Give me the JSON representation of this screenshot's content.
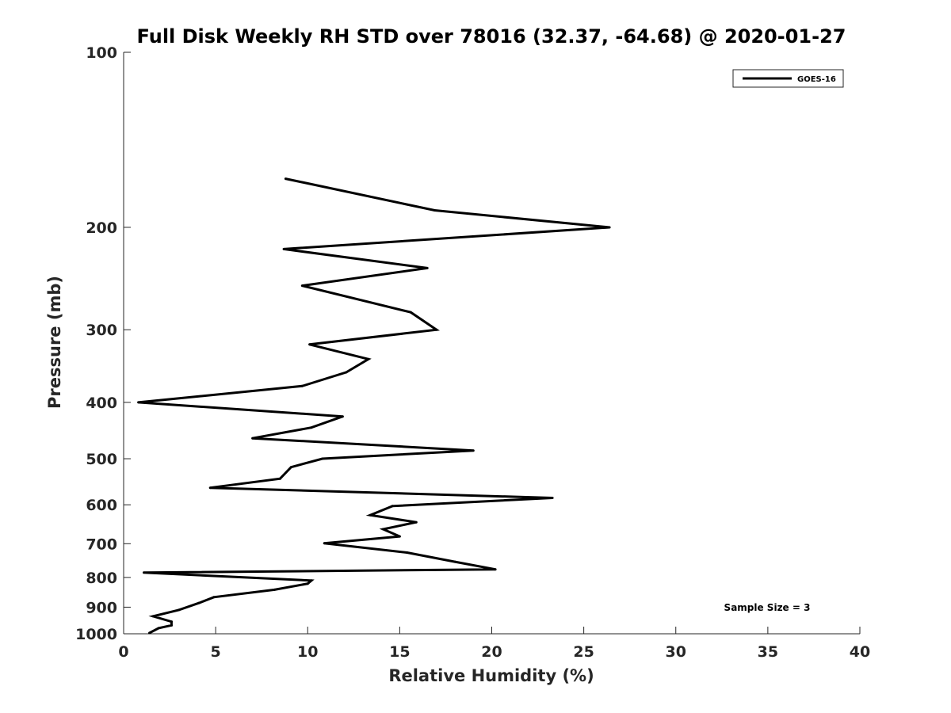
{
  "chart_data": {
    "type": "line",
    "title": "Full Disk Weekly RH STD over 78016 (32.37, -64.68) @ 2020-01-27",
    "xlabel": "Relative Humidity (%)",
    "ylabel": "Pressure (mb)",
    "xlim": [
      0,
      40
    ],
    "ylim": [
      1000,
      100
    ],
    "yscale": "log",
    "xticks": [
      "0",
      "5",
      "10",
      "15",
      "20",
      "25",
      "30",
      "35",
      "40"
    ],
    "yticks": [
      "100",
      "200",
      "300",
      "400",
      "500",
      "600",
      "700",
      "800",
      "900",
      "1000"
    ],
    "legend": {
      "position": "top-right",
      "entries": [
        "GOES-16"
      ]
    },
    "annotation": "Sample Size = 3",
    "grid": false,
    "series": [
      {
        "name": "GOES-16",
        "color": "#000000",
        "x": [
          8.8,
          16.9,
          26.4,
          8.7,
          16.5,
          9.7,
          15.6,
          17.0,
          10.1,
          13.3,
          12.1,
          9.7,
          0.8,
          11.9,
          10.2,
          7.0,
          19.0,
          10.8,
          9.1,
          8.5,
          4.7,
          23.3,
          14.6,
          13.4,
          15.9,
          14.1,
          15.0,
          10.9,
          15.4,
          18.0,
          20.2,
          1.1,
          10.2,
          10.0,
          8.2,
          4.9,
          4.1,
          3.0,
          1.6,
          2.6,
          2.6,
          1.9,
          1.4
        ],
        "y": [
          165,
          187,
          200,
          218,
          235,
          252,
          280,
          300,
          318,
          337,
          355,
          375,
          400,
          423,
          442,
          461,
          484,
          500,
          517,
          541,
          561,
          584,
          603,
          625,
          643,
          661,
          680,
          699,
          725,
          752,
          775,
          785,
          810,
          820,
          840,
          865,
          885,
          910,
          933,
          953,
          967,
          978,
          997
        ]
      }
    ]
  }
}
